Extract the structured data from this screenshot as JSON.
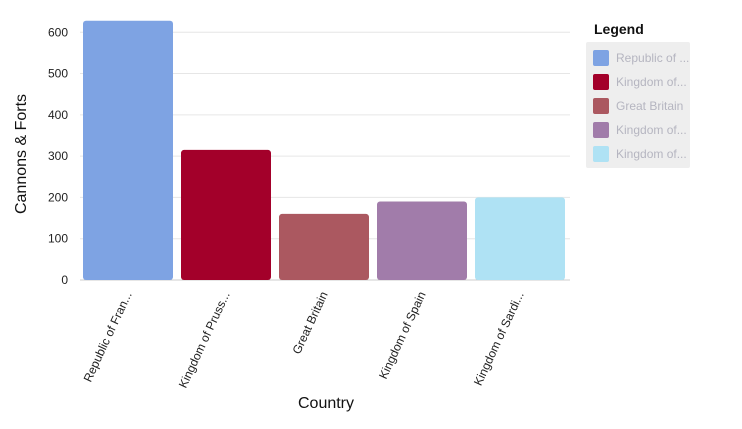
{
  "chart_data": {
    "type": "bar",
    "xlabel": "Country",
    "ylabel": "Cannons & Forts",
    "ylim": [
      0,
      620
    ],
    "yticks": [
      0,
      100,
      200,
      300,
      400,
      500,
      600
    ],
    "grid": true,
    "categories": [
      "Republic of Fran...",
      "Kingdom of Pruss...",
      "Great Britain",
      "Kingdom of Spain",
      "Kingdom of Sardi..."
    ],
    "values": [
      628,
      315,
      160,
      190,
      200
    ],
    "colors": [
      "#7ea3e3",
      "#a3002a",
      "#ab5860",
      "#a17caa",
      "#afe2f4"
    ],
    "legend": {
      "title": "Legend",
      "placement": "right",
      "entries": [
        "Republic of ...",
        "Kingdom of...",
        "Great Britain",
        "Kingdom of...",
        "Kingdom of..."
      ]
    }
  }
}
